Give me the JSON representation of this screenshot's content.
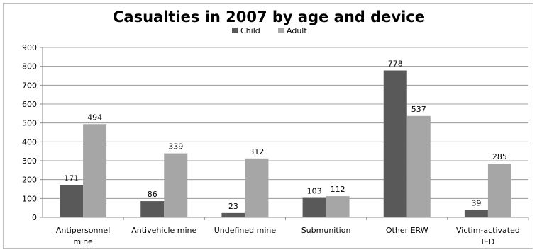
{
  "chart_data": {
    "type": "bar",
    "title": "Casualties in 2007 by age and device",
    "categories": [
      [
        "Antipersonnel",
        "mine"
      ],
      [
        "Antivehicle mine"
      ],
      [
        "Undefined mine"
      ],
      [
        "Submunition"
      ],
      [
        "Other ERW"
      ],
      [
        "Victim-activated",
        "IED"
      ]
    ],
    "series": [
      {
        "name": "Child",
        "color": "#595959",
        "values": [
          171,
          86,
          23,
          103,
          778,
          39
        ]
      },
      {
        "name": "Adult",
        "color": "#a6a6a6",
        "values": [
          494,
          339,
          312,
          112,
          537,
          285
        ]
      }
    ],
    "ylim": [
      0,
      900
    ],
    "yticks": [
      0,
      100,
      200,
      300,
      400,
      500,
      600,
      700,
      800,
      900
    ],
    "grid": true,
    "legend_position": "top"
  }
}
